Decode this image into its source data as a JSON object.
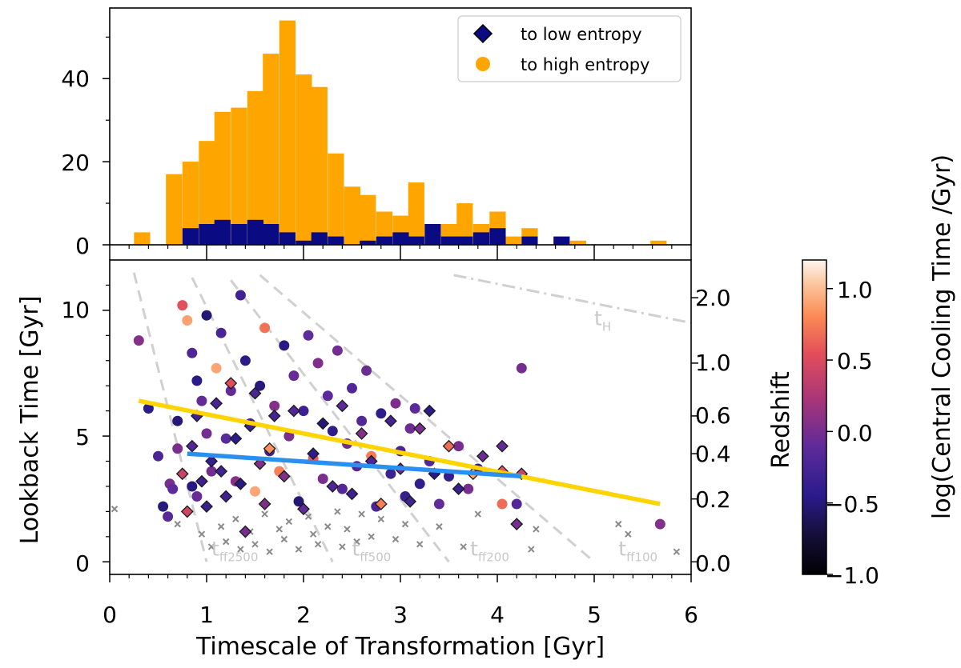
{
  "chart_data": [
    {
      "type": "bar",
      "panel": "histogram",
      "bin_width": 0.167,
      "ylim": [
        0,
        57
      ],
      "yticks": [
        "0",
        "20",
        "40"
      ],
      "series": [
        {
          "name": "to high entropy",
          "color": "#FFA500",
          "bins": [
            [
              0.25,
              3
            ],
            [
              0.42,
              0
            ],
            [
              0.58,
              17
            ],
            [
              0.75,
              20
            ],
            [
              0.92,
              25
            ],
            [
              1.08,
              32
            ],
            [
              1.25,
              33
            ],
            [
              1.42,
              37
            ],
            [
              1.58,
              46
            ],
            [
              1.75,
              54
            ],
            [
              1.92,
              41
            ],
            [
              2.08,
              38
            ],
            [
              2.25,
              22
            ],
            [
              2.42,
              14
            ],
            [
              2.58,
              12
            ],
            [
              2.75,
              8
            ],
            [
              2.92,
              7
            ],
            [
              3.08,
              15
            ],
            [
              3.25,
              5
            ],
            [
              3.42,
              5
            ],
            [
              3.58,
              10
            ],
            [
              3.75,
              5
            ],
            [
              3.92,
              8
            ],
            [
              4.08,
              2
            ],
            [
              4.25,
              4
            ],
            [
              4.42,
              0
            ],
            [
              4.58,
              1
            ],
            [
              4.75,
              1
            ],
            [
              4.92,
              0
            ],
            [
              5.08,
              0
            ],
            [
              5.25,
              0
            ],
            [
              5.42,
              0
            ],
            [
              5.58,
              1
            ]
          ]
        },
        {
          "name": "to low entropy",
          "color": "#0A0A82",
          "bins": [
            [
              0.75,
              4
            ],
            [
              0.92,
              5
            ],
            [
              1.08,
              6
            ],
            [
              1.25,
              5
            ],
            [
              1.42,
              6
            ],
            [
              1.58,
              5
            ],
            [
              1.75,
              3
            ],
            [
              1.92,
              1
            ],
            [
              2.08,
              3
            ],
            [
              2.25,
              2
            ],
            [
              2.42,
              0
            ],
            [
              2.58,
              1
            ],
            [
              2.75,
              2
            ],
            [
              2.92,
              3
            ],
            [
              3.08,
              2
            ],
            [
              3.25,
              5
            ],
            [
              3.42,
              2
            ],
            [
              3.58,
              2
            ],
            [
              3.75,
              3
            ],
            [
              3.92,
              4
            ],
            [
              4.08,
              0
            ],
            [
              4.25,
              2
            ],
            [
              4.42,
              0
            ],
            [
              4.58,
              2
            ]
          ]
        }
      ]
    },
    {
      "type": "scatter",
      "panel": "main",
      "xlabel": "Timescale of Transformation [Gyr]",
      "ylabel": "Lookback Time [Gyr]",
      "ylabel_right": "Redshift",
      "xlim": [
        0,
        6
      ],
      "ylim": [
        -0.5,
        12
      ],
      "xticks": [
        "0",
        "1",
        "2",
        "3",
        "4",
        "5",
        "6"
      ],
      "yticks": [
        "0",
        "5",
        "10"
      ],
      "redshift_ticks": [
        {
          "label": "0.0",
          "lookback": 0.0
        },
        {
          "label": "0.2",
          "lookback": 2.5
        },
        {
          "label": "0.4",
          "lookback": 4.3
        },
        {
          "label": "0.6",
          "lookback": 5.8
        },
        {
          "label": "1.0",
          "lookback": 7.9
        },
        {
          "label": "2.0",
          "lookback": 10.5
        }
      ],
      "to_high_entropy": [
        [
          0.3,
          8.8
        ],
        [
          0.4,
          6.1
        ],
        [
          0.5,
          4.2
        ],
        [
          0.55,
          2.2
        ],
        [
          0.6,
          1.8
        ],
        [
          0.62,
          3.1
        ],
        [
          0.65,
          2.9
        ],
        [
          0.7,
          5.6
        ],
        [
          0.7,
          4.5
        ],
        [
          0.75,
          10.2
        ],
        [
          0.8,
          9.6
        ],
        [
          0.85,
          8.3
        ],
        [
          0.9,
          7.2
        ],
        [
          0.85,
          3.0
        ],
        [
          0.9,
          2.6
        ],
        [
          0.95,
          6.4
        ],
        [
          1.0,
          9.8
        ],
        [
          1.0,
          5.1
        ],
        [
          1.05,
          3.6
        ],
        [
          1.1,
          7.7
        ],
        [
          1.15,
          9.1
        ],
        [
          1.2,
          4.9
        ],
        [
          1.25,
          6.8
        ],
        [
          1.3,
          3.2
        ],
        [
          1.35,
          10.6
        ],
        [
          1.4,
          8.0
        ],
        [
          1.45,
          5.5
        ],
        [
          1.5,
          2.8
        ],
        [
          1.55,
          7.0
        ],
        [
          1.6,
          9.3
        ],
        [
          1.65,
          4.4
        ],
        [
          1.7,
          6.2
        ],
        [
          1.75,
          3.6
        ],
        [
          1.8,
          8.6
        ],
        [
          1.85,
          5.0
        ],
        [
          1.9,
          7.4
        ],
        [
          1.95,
          2.4
        ],
        [
          2.0,
          6.0
        ],
        [
          2.05,
          9.0
        ],
        [
          2.1,
          4.1
        ],
        [
          2.15,
          7.9
        ],
        [
          2.2,
          3.3
        ],
        [
          2.25,
          6.6
        ],
        [
          2.3,
          5.2
        ],
        [
          2.35,
          8.4
        ],
        [
          2.4,
          2.9
        ],
        [
          2.45,
          4.7
        ],
        [
          2.5,
          6.9
        ],
        [
          2.55,
          3.8
        ],
        [
          2.6,
          5.6
        ],
        [
          2.65,
          7.6
        ],
        [
          2.7,
          4.2
        ],
        [
          2.75,
          2.2
        ],
        [
          2.8,
          5.9
        ],
        [
          2.9,
          3.5
        ],
        [
          2.95,
          6.3
        ],
        [
          3.0,
          4.4
        ],
        [
          3.05,
          2.6
        ],
        [
          3.1,
          5.3
        ],
        [
          3.15,
          6.1
        ],
        [
          3.2,
          3.1
        ],
        [
          3.3,
          4.0
        ],
        [
          3.4,
          2.3
        ],
        [
          3.5,
          3.4
        ],
        [
          3.6,
          4.6
        ],
        [
          3.7,
          2.9
        ],
        [
          3.8,
          3.7
        ],
        [
          4.05,
          2.3
        ],
        [
          4.2,
          2.3
        ],
        [
          4.25,
          7.7
        ],
        [
          5.68,
          1.5
        ]
      ],
      "to_low_entropy": [
        [
          0.75,
          3.5
        ],
        [
          0.8,
          2.0
        ],
        [
          0.85,
          4.6
        ],
        [
          0.9,
          5.8
        ],
        [
          0.95,
          3.2
        ],
        [
          1.0,
          2.2
        ],
        [
          1.05,
          4.0
        ],
        [
          1.1,
          6.3
        ],
        [
          1.15,
          3.6
        ],
        [
          1.2,
          2.6
        ],
        [
          1.25,
          7.1
        ],
        [
          1.3,
          4.9
        ],
        [
          1.35,
          3.1
        ],
        [
          1.4,
          1.2
        ],
        [
          1.45,
          5.4
        ],
        [
          1.5,
          6.7
        ],
        [
          1.55,
          3.9
        ],
        [
          1.6,
          2.3
        ],
        [
          1.65,
          4.5
        ],
        [
          1.7,
          5.8
        ],
        [
          1.8,
          3.4
        ],
        [
          1.9,
          6.0
        ],
        [
          2.0,
          2.1
        ],
        [
          2.1,
          4.3
        ],
        [
          2.2,
          5.5
        ],
        [
          2.3,
          3.0
        ],
        [
          2.4,
          6.2
        ],
        [
          2.5,
          2.7
        ],
        [
          2.6,
          5.1
        ],
        [
          2.7,
          4.0
        ],
        [
          2.8,
          2.3
        ],
        [
          2.9,
          5.6
        ],
        [
          3.0,
          3.7
        ],
        [
          3.1,
          2.4
        ],
        [
          3.2,
          5.3
        ],
        [
          3.3,
          6.0
        ],
        [
          3.35,
          3.5
        ],
        [
          3.5,
          4.6
        ],
        [
          3.6,
          2.9
        ],
        [
          3.75,
          3.5
        ],
        [
          3.85,
          4.2
        ],
        [
          4.05,
          4.6
        ],
        [
          4.05,
          3.6
        ],
        [
          4.2,
          1.5
        ],
        [
          4.25,
          3.5
        ]
      ],
      "fit_lines": [
        {
          "name": "to high entropy fit",
          "color": "#FFD400",
          "points": [
            [
              0.3,
              6.4
            ],
            [
              5.68,
              2.3
            ]
          ]
        },
        {
          "name": "to low entropy fit",
          "color": "#2B8FEF",
          "points": [
            [
              0.8,
              4.3
            ],
            [
              4.25,
              3.4
            ]
          ]
        }
      ],
      "guide_lines": [
        {
          "name": "tff2500",
          "label": "t",
          "sub": "ff2500",
          "style": "dashed",
          "points": [
            [
              0.25,
              11.5
            ],
            [
              1.0,
              0.0
            ]
          ]
        },
        {
          "name": "tff500",
          "label": "t",
          "sub": "ff500",
          "style": "dashed",
          "points": [
            [
              0.85,
              11.3
            ],
            [
              2.3,
              0.0
            ]
          ]
        },
        {
          "name": "tff200",
          "label": "t",
          "sub": "ff200",
          "style": "dashed",
          "points": [
            [
              1.25,
              11.2
            ],
            [
              3.5,
              0.0
            ]
          ]
        },
        {
          "name": "tff100",
          "label": "t",
          "sub": "ff100",
          "style": "dashed",
          "points": [
            [
              1.55,
              11.4
            ],
            [
              5.0,
              0.0
            ]
          ]
        },
        {
          "name": "tH",
          "label": "t",
          "sub": "H",
          "style": "dashdot",
          "points": [
            [
              3.55,
              11.4
            ],
            [
              6.0,
              9.5
            ]
          ]
        }
      ],
      "crosses": [
        [
          0.05,
          2.1
        ],
        [
          0.7,
          1.5
        ],
        [
          0.95,
          1.1
        ],
        [
          1.05,
          0.6
        ],
        [
          1.15,
          1.4
        ],
        [
          1.2,
          0.8
        ],
        [
          1.3,
          1.7
        ],
        [
          1.35,
          0.5
        ],
        [
          1.45,
          1.2
        ],
        [
          1.5,
          0.7
        ],
        [
          1.6,
          1.9
        ],
        [
          1.65,
          0.4
        ],
        [
          1.75,
          1.3
        ],
        [
          1.8,
          0.9
        ],
        [
          1.85,
          1.6
        ],
        [
          1.95,
          0.5
        ],
        [
          2.05,
          1.8
        ],
        [
          2.1,
          1.1
        ],
        [
          2.15,
          0.7
        ],
        [
          2.25,
          1.4
        ],
        [
          2.35,
          2.0
        ],
        [
          2.4,
          0.6
        ],
        [
          2.45,
          1.3
        ],
        [
          2.55,
          0.8
        ],
        [
          2.6,
          1.9
        ],
        [
          2.7,
          1.0
        ],
        [
          2.8,
          1.7
        ],
        [
          2.95,
          0.9
        ],
        [
          3.05,
          1.5
        ],
        [
          3.2,
          0.7
        ],
        [
          3.4,
          1.4
        ],
        [
          3.65,
          0.6
        ],
        [
          3.8,
          1.9
        ],
        [
          4.35,
          0.5
        ],
        [
          4.4,
          1.3
        ],
        [
          5.25,
          1.5
        ],
        [
          5.35,
          1.1
        ],
        [
          5.85,
          0.4
        ]
      ]
    }
  ],
  "legend": {
    "low": {
      "label": "to low entropy",
      "color": "#0A0A82"
    },
    "high": {
      "label": "to high entropy",
      "color": "#FFA500"
    }
  },
  "colorbar": {
    "label": "log(Central Cooling Time /Gyr)",
    "range": [
      -1.0,
      1.2
    ],
    "ticks": [
      "1.0",
      "0.5",
      "0.0",
      "−0.5",
      "−1.0"
    ],
    "tick_values": [
      1.0,
      0.5,
      0.0,
      -0.5,
      -1.0
    ]
  }
}
